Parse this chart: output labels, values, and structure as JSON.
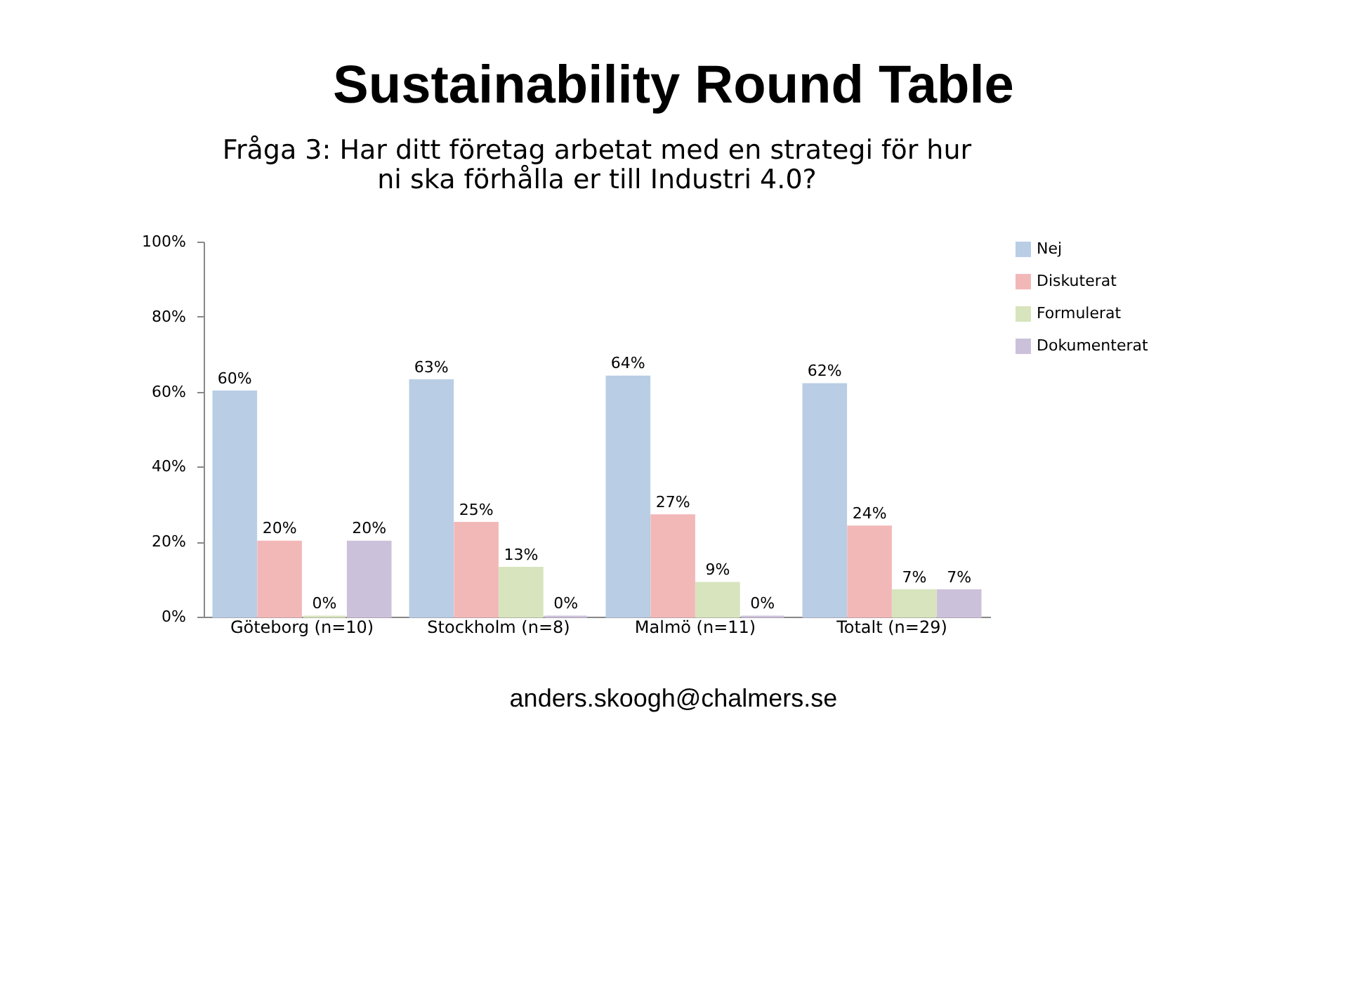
{
  "chart_data": {
    "type": "bar",
    "title": "Sustainability Round Table",
    "subtitle": "Fråga 3: Har ditt företag arbetat med en strategi för hur ni ska förhålla er till Industri 4.0?",
    "categories": [
      "Göteborg (n=10)",
      "Stockholm (n=8)",
      "Malmö (n=11)",
      "Totalt (n=29)"
    ],
    "series": [
      {
        "name": "Nej",
        "color": "#b9cde5",
        "values": [
          60,
          63,
          64,
          62
        ],
        "value_labels": [
          "60%",
          "63%",
          "64%",
          "62%"
        ]
      },
      {
        "name": "Diskuterat",
        "color": "#f2b8b8",
        "values": [
          20,
          25,
          27,
          24
        ],
        "value_labels": [
          "20%",
          "25%",
          "27%",
          "24%"
        ]
      },
      {
        "name": "Formulerat",
        "color": "#d7e4bd",
        "values": [
          0,
          13,
          9,
          7
        ],
        "value_labels": [
          "0%",
          "13%",
          "9%",
          "7%"
        ]
      },
      {
        "name": "Dokumenterat",
        "color": "#ccc1da",
        "values": [
          20,
          0,
          0,
          7
        ],
        "value_labels": [
          "20%",
          "0%",
          "0%",
          "7%"
        ]
      }
    ],
    "ylim": [
      0,
      100
    ],
    "yticks": [
      {
        "value": 0,
        "label": "0%"
      },
      {
        "value": 20,
        "label": "20%"
      },
      {
        "value": 40,
        "label": "40%"
      },
      {
        "value": 60,
        "label": "60%"
      },
      {
        "value": 80,
        "label": "80%"
      },
      {
        "value": 100,
        "label": "100%"
      }
    ],
    "grid": false,
    "legend": "right",
    "annotations": [
      "anders.skoogh@chalmers.se"
    ]
  }
}
